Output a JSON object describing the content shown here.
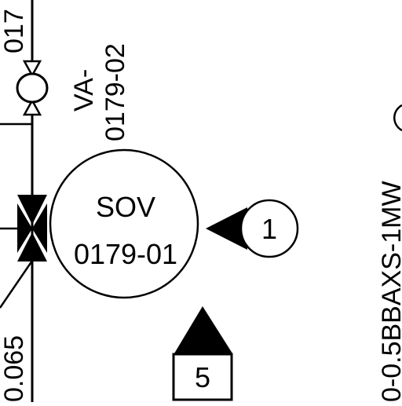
{
  "drawing": {
    "valve_tag_top_fragment": "017",
    "manual_valve": {
      "tag_line1": "VA-",
      "tag_line2": "0179-02"
    },
    "solenoid_valve": {
      "tag_line1": "SOV",
      "tag_line2": "0179-01"
    },
    "note_callout_1": "1",
    "note_callout_5": "5",
    "line_size_fragment": "0.065",
    "line_designation_fragment": "0-0.5BBAXS-1MW"
  },
  "colors": {
    "ink": "#000000",
    "paper": "#ffffff"
  }
}
